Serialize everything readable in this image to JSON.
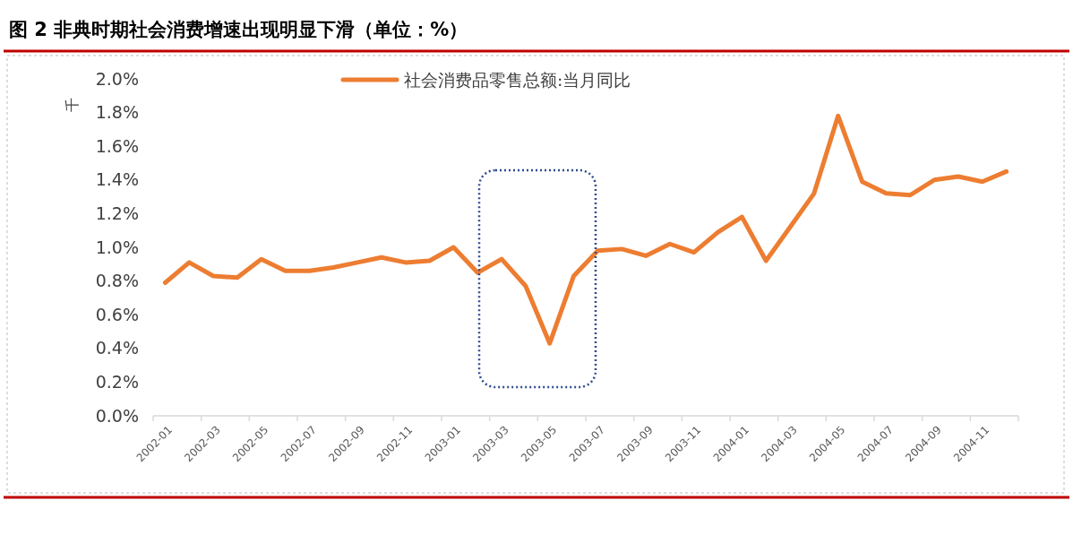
{
  "chart_data": {
    "type": "line",
    "title": "图 2 非典时期社会消费增速出现明显下滑（单位：%）",
    "ylabel": "千",
    "categories": [
      "2002-01",
      null,
      "2002-03",
      null,
      "2002-05",
      null,
      "2002-07",
      null,
      "2002-09",
      null,
      "2002-11",
      null,
      "2003-01",
      null,
      "2003-03",
      null,
      "2003-05",
      null,
      "2003-07",
      null,
      "2003-09",
      null,
      "2003-11",
      null,
      "2004-01",
      null,
      "2004-03",
      null,
      "2004-05",
      null,
      "2004-07",
      null,
      "2004-09",
      null,
      "2004-11",
      null
    ],
    "series": [
      {
        "name": "社会消费品零售总额:当月同比",
        "color": "#ed7d31",
        "values": [
          0.79,
          0.91,
          0.83,
          0.82,
          0.93,
          0.86,
          0.86,
          0.88,
          0.91,
          0.94,
          0.91,
          0.92,
          1.0,
          0.85,
          0.93,
          0.77,
          0.43,
          0.83,
          0.98,
          0.99,
          0.95,
          1.02,
          0.97,
          1.09,
          1.18,
          0.92,
          1.12,
          1.32,
          1.78,
          1.39,
          1.32,
          1.31,
          1.4,
          1.42,
          1.39,
          1.45
        ]
      }
    ],
    "ylim": [
      0,
      2
    ],
    "yticks": [
      {
        "value": 0,
        "label": "0.0%"
      },
      {
        "value": 0.2,
        "label": "0.2%"
      },
      {
        "value": 0.4,
        "label": "0.4%"
      },
      {
        "value": 0.6,
        "label": "0.6%"
      },
      {
        "value": 0.8,
        "label": "0.8%"
      },
      {
        "value": 1.0,
        "label": "1.0%"
      },
      {
        "value": 1.2,
        "label": "1.2%"
      },
      {
        "value": 1.4,
        "label": "1.4%"
      },
      {
        "value": 1.6,
        "label": "1.6%"
      },
      {
        "value": 1.8,
        "label": "1.8%"
      },
      {
        "value": 2.0,
        "label": "2.0%"
      }
    ],
    "legend": "top",
    "marker": "none",
    "line_style": "solid"
  }
}
